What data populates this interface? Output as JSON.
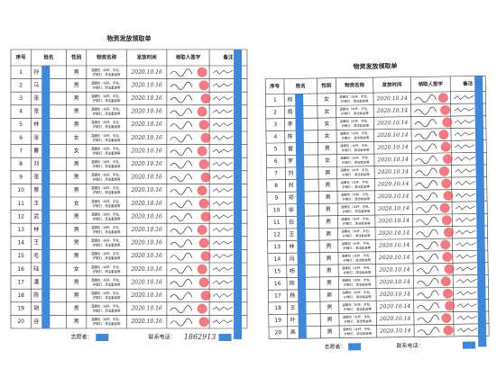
{
  "left": {
    "title": "物资发放领取单",
    "headers": [
      "序号",
      "姓名",
      "性别",
      "物资名称",
      "发放时间",
      "领取人签字",
      "备注"
    ],
    "item": [
      "温暖包（水杯、手包、",
      "护眼灯、清洁套装等"
    ],
    "rows": [
      {
        "no": "1",
        "name": "孙",
        "gender": "男",
        "date": "2020.10.16"
      },
      {
        "no": "2",
        "name": "马",
        "gender": "男",
        "date": "2020.10.16"
      },
      {
        "no": "3",
        "name": "张",
        "gender": "男",
        "date": "2020.10.16"
      },
      {
        "no": "4",
        "name": "张",
        "gender": "男",
        "date": "2020.10.16"
      },
      {
        "no": "5",
        "name": "林",
        "gender": "男",
        "date": "2020.10.16"
      },
      {
        "no": "6",
        "name": "张",
        "gender": "女",
        "date": "2020.10.16"
      },
      {
        "no": "7",
        "name": "曹",
        "gender": "女",
        "date": "2020.10.16"
      },
      {
        "no": "8",
        "name": "刘",
        "gender": "男",
        "date": "2020.10.16"
      },
      {
        "no": "9",
        "name": "张",
        "gender": "男",
        "date": "2020.10.16"
      },
      {
        "no": "10",
        "name": "蔡",
        "gender": "男",
        "date": "2020.10.16"
      },
      {
        "no": "11",
        "name": "王",
        "gender": "女",
        "date": "2020.10.16"
      },
      {
        "no": "12",
        "name": "武",
        "gender": "男",
        "date": "2020.10.16"
      },
      {
        "no": "13",
        "name": "林",
        "gender": "男",
        "date": "2020.10.16"
      },
      {
        "no": "14",
        "name": "王",
        "gender": "男",
        "date": "2020.10.16"
      },
      {
        "no": "15",
        "name": "毛",
        "gender": "男",
        "date": "2020.10.16"
      },
      {
        "no": "16",
        "name": "陆",
        "gender": "女",
        "date": "2020.10.16"
      },
      {
        "no": "17",
        "name": "潘",
        "gender": "男",
        "date": "2020.10.16"
      },
      {
        "no": "18",
        "name": "陈",
        "gender": "男",
        "date": "2020.10.16"
      },
      {
        "no": "19",
        "name": "胡",
        "gender": "男",
        "date": "2020.10.16"
      },
      {
        "no": "20",
        "name": "谷",
        "gender": "男",
        "date": "2020.10.16"
      }
    ],
    "footer_volunteer": "志愿者：",
    "footer_phone": "联系电话：",
    "phone_written": "1862913"
  },
  "right": {
    "title": "物资发放领取单",
    "headers": [
      "序号",
      "姓名",
      "性别",
      "物资名称",
      "发放时间",
      "领取人签字",
      "备注"
    ],
    "item": [
      "温暖包（水杯、手包、",
      "护眼灯、清洁套装等"
    ],
    "rows": [
      {
        "no": "1",
        "name": "郑",
        "gender": "女",
        "date": "2020.10.14"
      },
      {
        "no": "2",
        "name": "周",
        "gender": "女",
        "date": "2020.10.14"
      },
      {
        "no": "3",
        "name": "李",
        "gender": "女",
        "date": "2020.10.14"
      },
      {
        "no": "4",
        "name": "陈",
        "gender": "女",
        "date": "2020.10.14"
      },
      {
        "no": "5",
        "name": "雷",
        "gender": "男",
        "date": "2020.10.14"
      },
      {
        "no": "6",
        "name": "罗",
        "gender": "女",
        "date": "2020.10.14"
      },
      {
        "no": "7",
        "name": "刘",
        "gender": "男",
        "date": "2020.10.14"
      },
      {
        "no": "8",
        "name": "刘",
        "gender": "男",
        "date": "2020.10.14"
      },
      {
        "no": "9",
        "name": "郑",
        "gender": "男",
        "date": "2020.10.14"
      },
      {
        "no": "10",
        "name": "徐",
        "gender": "男",
        "date": "2020.10.14"
      },
      {
        "no": "11",
        "name": "白",
        "gender": "男",
        "date": "2020.10.14"
      },
      {
        "no": "12",
        "name": "王",
        "gender": "男",
        "date": "2020.10.14"
      },
      {
        "no": "13",
        "name": "林",
        "gender": "男",
        "date": "2020.10.14"
      },
      {
        "no": "14",
        "name": "闫",
        "gender": "男",
        "date": "2020.10.14"
      },
      {
        "no": "15",
        "name": "杨",
        "gender": "男",
        "date": "2020.10.14"
      },
      {
        "no": "16",
        "name": "陈",
        "gender": "男",
        "date": "2020.10.14"
      },
      {
        "no": "17",
        "name": "杨",
        "gender": "男",
        "date": "2020.10.14"
      },
      {
        "no": "18",
        "name": "王",
        "gender": "男",
        "date": "2020.10.14"
      },
      {
        "no": "19",
        "name": "叶",
        "gender": "男",
        "date": "2020.10.14"
      },
      {
        "no": "20",
        "name": "高",
        "gender": "男",
        "date": "2020.10.14"
      }
    ],
    "footer_volunteer": "志愿者：",
    "footer_phone": "联系电话："
  }
}
